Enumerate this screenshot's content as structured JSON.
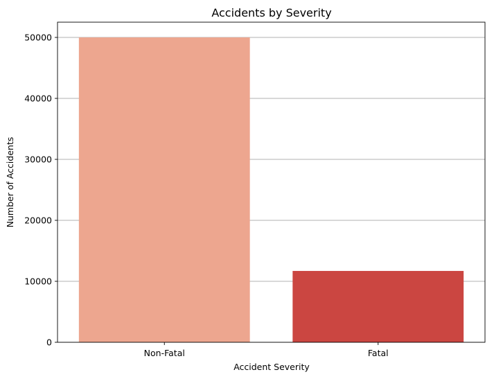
{
  "chart_data": {
    "type": "bar",
    "title": "Accidents by Severity",
    "xlabel": "Accident Severity",
    "ylabel": "Number of Accidents",
    "categories": [
      "Non-Fatal",
      "Fatal"
    ],
    "values": [
      50000,
      11700
    ],
    "colors": [
      "#eda68f",
      "#cb4641"
    ],
    "ylim": [
      0,
      52500
    ],
    "yticks": [
      0,
      10000,
      20000,
      30000,
      40000,
      50000
    ],
    "grid": "y-major",
    "legend": "none"
  }
}
